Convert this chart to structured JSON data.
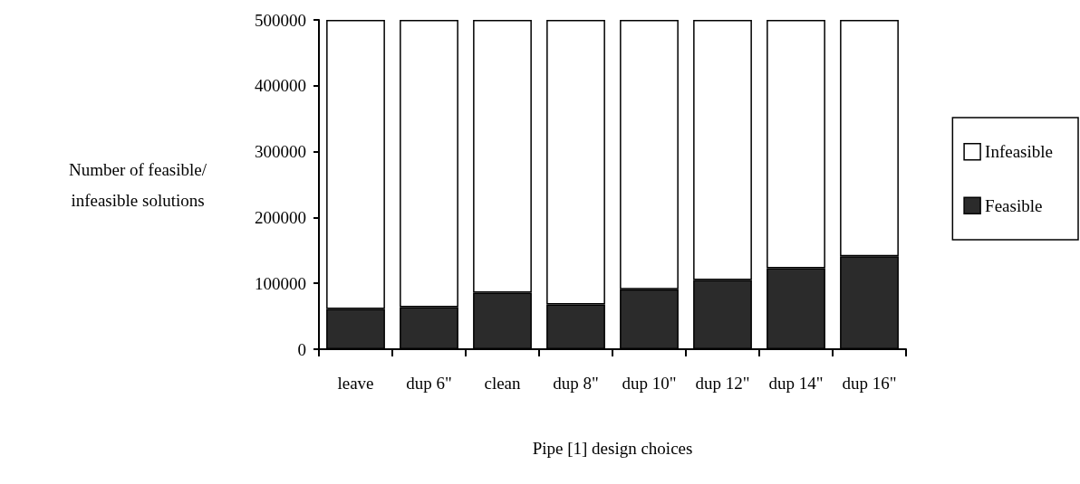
{
  "chart_data": {
    "type": "bar",
    "stacked": true,
    "xlabel": "Pipe [1] design choices",
    "ylabel": "Number of feasible/\ninfeasible solutions",
    "categories": [
      "leave",
      "dup 6\"",
      "clean",
      "dup 8\"",
      "dup 10\"",
      "dup 12\"",
      "dup 14\"",
      "dup 16\""
    ],
    "series": [
      {
        "name": "Feasible",
        "color": "#2b2b2b",
        "values": [
          61000,
          64000,
          86000,
          68000,
          91000,
          105000,
          123000,
          141000
        ]
      },
      {
        "name": "Infeasible",
        "color": "#ffffff",
        "values": [
          439000,
          436000,
          414000,
          432000,
          409000,
          395000,
          377000,
          359000
        ]
      }
    ],
    "ylim": [
      0,
      500000
    ],
    "yticks": [
      0,
      100000,
      200000,
      300000,
      400000,
      500000
    ],
    "grid": false,
    "legend": "right"
  }
}
